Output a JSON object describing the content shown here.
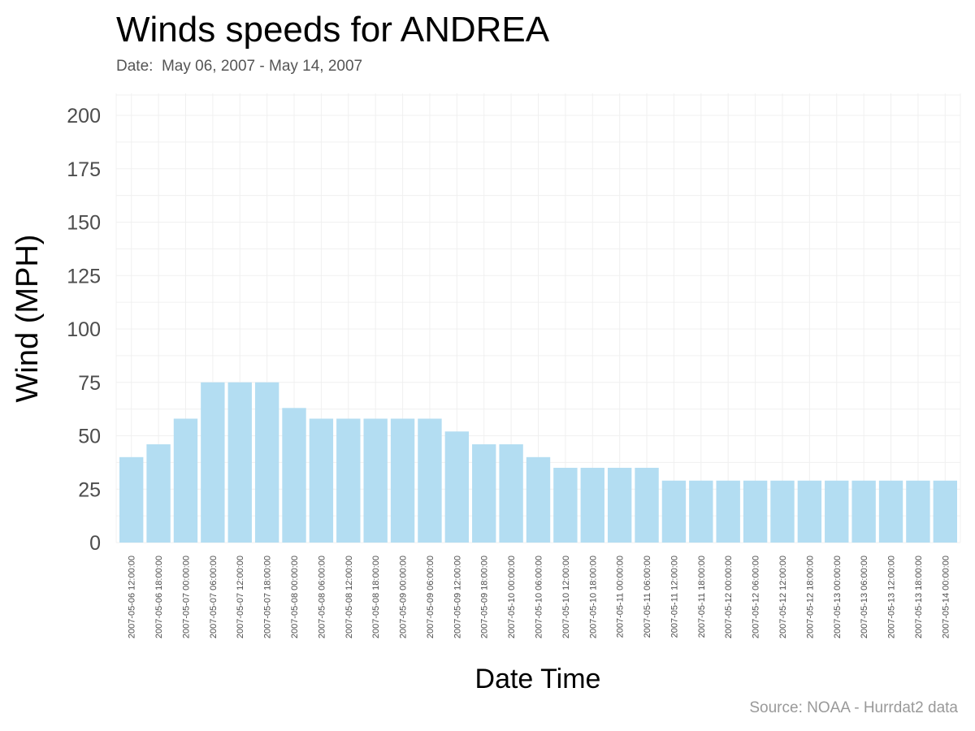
{
  "chart_data": {
    "type": "bar",
    "title": "Winds speeds for ANDREA",
    "subtitle": "Date:  May 06, 2007 - May 14, 2007",
    "xlabel": "Date Time",
    "ylabel": "Wind (MPH)",
    "caption": "Source: NOAA - Hurrdat2 data",
    "ylim": [
      0,
      200
    ],
    "yticks": [
      0,
      25,
      50,
      75,
      100,
      125,
      150,
      175,
      200
    ],
    "grid": true,
    "bar_color": "#b3ddf2",
    "categories": [
      "2007-05-06 12:00:00",
      "2007-05-06 18:00:00",
      "2007-05-07 00:00:00",
      "2007-05-07 06:00:00",
      "2007-05-07 12:00:00",
      "2007-05-07 18:00:00",
      "2007-05-08 00:00:00",
      "2007-05-08 06:00:00",
      "2007-05-08 12:00:00",
      "2007-05-08 18:00:00",
      "2007-05-09 00:00:00",
      "2007-05-09 06:00:00",
      "2007-05-09 12:00:00",
      "2007-05-09 18:00:00",
      "2007-05-10 00:00:00",
      "2007-05-10 06:00:00",
      "2007-05-10 12:00:00",
      "2007-05-10 18:00:00",
      "2007-05-11 00:00:00",
      "2007-05-11 06:00:00",
      "2007-05-11 12:00:00",
      "2007-05-11 18:00:00",
      "2007-05-12 00:00:00",
      "2007-05-12 06:00:00",
      "2007-05-12 12:00:00",
      "2007-05-12 18:00:00",
      "2007-05-13 00:00:00",
      "2007-05-13 06:00:00",
      "2007-05-13 12:00:00",
      "2007-05-13 18:00:00",
      "2007-05-14 00:00:00"
    ],
    "values": [
      40,
      46,
      58,
      75,
      75,
      75,
      63,
      58,
      58,
      58,
      58,
      58,
      52,
      46,
      46,
      40,
      35,
      35,
      35,
      35,
      29,
      29,
      29,
      29,
      29,
      29,
      29,
      29,
      29,
      29,
      29
    ]
  }
}
